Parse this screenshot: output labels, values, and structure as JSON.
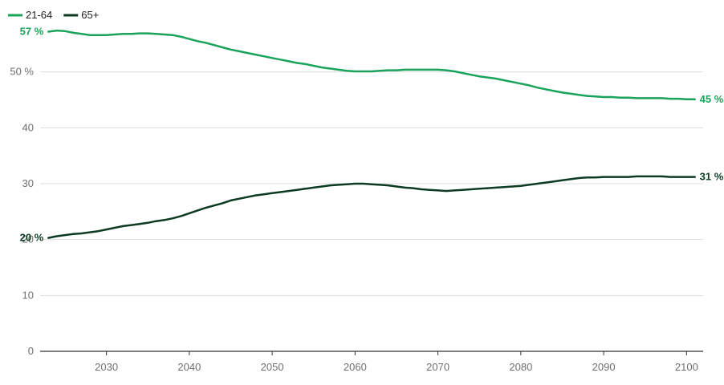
{
  "chart_data": {
    "type": "line",
    "title": "",
    "xlabel": "",
    "ylabel": "",
    "xlim": [
      2022,
      2102
    ],
    "ylim": [
      0,
      60
    ],
    "x_ticks": [
      2030,
      2040,
      2050,
      2060,
      2070,
      2080,
      2090,
      2100
    ],
    "y_ticks": [
      {
        "value": 0,
        "label": "0"
      },
      {
        "value": 10,
        "label": "10"
      },
      {
        "value": 20,
        "label": "20"
      },
      {
        "value": 30,
        "label": "30"
      },
      {
        "value": 40,
        "label": "40"
      },
      {
        "value": 50,
        "label": "50 %"
      }
    ],
    "grid": true,
    "legend_position": "top-left",
    "series": [
      {
        "name": "21-64",
        "color": "#1aa35a",
        "start_label": "57 %",
        "end_label": "45 %",
        "x": [
          2023,
          2024,
          2025,
          2026,
          2027,
          2028,
          2029,
          2030,
          2031,
          2032,
          2033,
          2034,
          2035,
          2036,
          2037,
          2038,
          2039,
          2040,
          2041,
          2042,
          2043,
          2044,
          2045,
          2046,
          2047,
          2048,
          2049,
          2050,
          2051,
          2052,
          2053,
          2054,
          2055,
          2056,
          2057,
          2058,
          2059,
          2060,
          2061,
          2062,
          2063,
          2064,
          2065,
          2066,
          2067,
          2068,
          2069,
          2070,
          2071,
          2072,
          2073,
          2074,
          2075,
          2076,
          2077,
          2078,
          2079,
          2080,
          2081,
          2082,
          2083,
          2084,
          2085,
          2086,
          2087,
          2088,
          2089,
          2090,
          2091,
          2092,
          2093,
          2094,
          2095,
          2096,
          2097,
          2098,
          2099,
          2100,
          2101
        ],
        "values": [
          57.2,
          57.4,
          57.3,
          57.0,
          56.8,
          56.6,
          56.6,
          56.6,
          56.7,
          56.8,
          56.8,
          56.9,
          56.9,
          56.8,
          56.7,
          56.6,
          56.3,
          55.9,
          55.5,
          55.2,
          54.8,
          54.4,
          54.0,
          53.7,
          53.4,
          53.1,
          52.8,
          52.5,
          52.2,
          51.9,
          51.6,
          51.4,
          51.1,
          50.8,
          50.6,
          50.4,
          50.2,
          50.1,
          50.1,
          50.1,
          50.2,
          50.3,
          50.3,
          50.4,
          50.4,
          50.4,
          50.4,
          50.4,
          50.3,
          50.1,
          49.8,
          49.5,
          49.2,
          49.0,
          48.8,
          48.5,
          48.2,
          47.9,
          47.6,
          47.2,
          46.9,
          46.6,
          46.3,
          46.1,
          45.9,
          45.7,
          45.6,
          45.5,
          45.5,
          45.4,
          45.4,
          45.3,
          45.3,
          45.3,
          45.3,
          45.2,
          45.2,
          45.1,
          45.1
        ]
      },
      {
        "name": "65+",
        "color": "#0d3b22",
        "start_label": "20 %",
        "end_label": "31 %",
        "x": [
          2023,
          2024,
          2025,
          2026,
          2027,
          2028,
          2029,
          2030,
          2031,
          2032,
          2033,
          2034,
          2035,
          2036,
          2037,
          2038,
          2039,
          2040,
          2041,
          2042,
          2043,
          2044,
          2045,
          2046,
          2047,
          2048,
          2049,
          2050,
          2051,
          2052,
          2053,
          2054,
          2055,
          2056,
          2057,
          2058,
          2059,
          2060,
          2061,
          2062,
          2063,
          2064,
          2065,
          2066,
          2067,
          2068,
          2069,
          2070,
          2071,
          2072,
          2073,
          2074,
          2075,
          2076,
          2077,
          2078,
          2079,
          2080,
          2081,
          2082,
          2083,
          2084,
          2085,
          2086,
          2087,
          2088,
          2089,
          2090,
          2091,
          2092,
          2093,
          2094,
          2095,
          2096,
          2097,
          2098,
          2099,
          2100,
          2101
        ],
        "values": [
          20.3,
          20.6,
          20.8,
          21.0,
          21.1,
          21.3,
          21.5,
          21.8,
          22.1,
          22.4,
          22.6,
          22.8,
          23.0,
          23.3,
          23.5,
          23.8,
          24.2,
          24.7,
          25.2,
          25.7,
          26.1,
          26.5,
          27.0,
          27.3,
          27.6,
          27.9,
          28.1,
          28.3,
          28.5,
          28.7,
          28.9,
          29.1,
          29.3,
          29.5,
          29.7,
          29.8,
          29.9,
          30.0,
          30.0,
          29.9,
          29.8,
          29.7,
          29.5,
          29.3,
          29.2,
          29.0,
          28.9,
          28.8,
          28.7,
          28.8,
          28.9,
          29.0,
          29.1,
          29.2,
          29.3,
          29.4,
          29.5,
          29.6,
          29.8,
          30.0,
          30.2,
          30.4,
          30.6,
          30.8,
          31.0,
          31.1,
          31.1,
          31.2,
          31.2,
          31.2,
          31.2,
          31.3,
          31.3,
          31.3,
          31.3,
          31.2,
          31.2,
          31.2,
          31.2
        ]
      }
    ]
  }
}
